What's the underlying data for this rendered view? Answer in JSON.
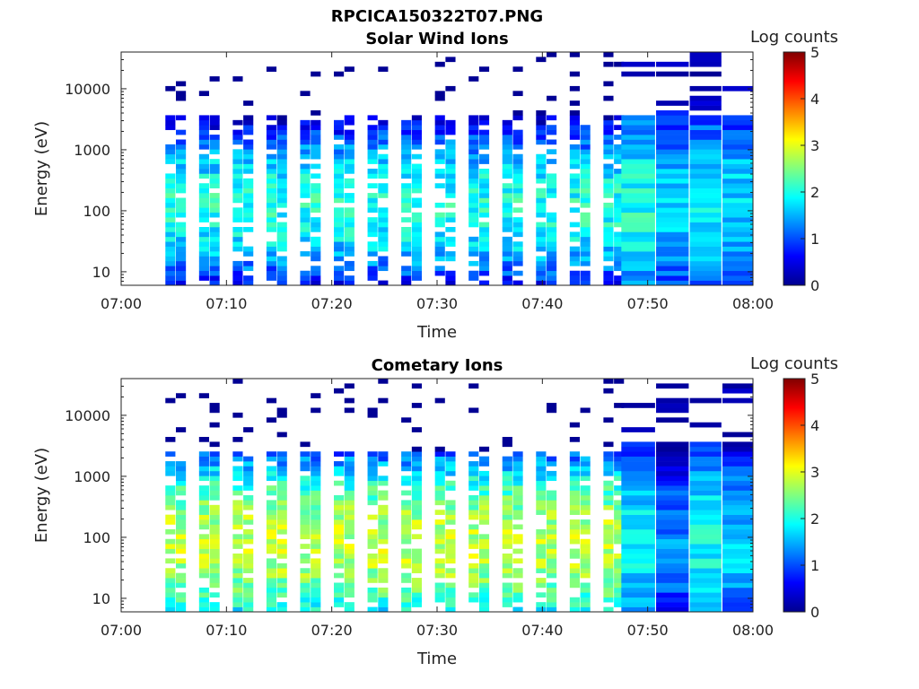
{
  "figure": {
    "title": "RPCICA150322T07.PNG"
  },
  "chart_data": [
    {
      "type": "heatmap",
      "title": "Solar Wind Ions",
      "xlabel": "Time",
      "ylabel": "Energy (eV)",
      "x_ticks": [
        "07:00",
        "07:10",
        "07:20",
        "07:30",
        "07:40",
        "07:50",
        "08:00"
      ],
      "x_range": [
        "07:00",
        "08:00"
      ],
      "y_scale": "log",
      "y_range": [
        6,
        40000
      ],
      "y_ticks": [
        10,
        100,
        1000,
        10000
      ],
      "y_tick_labels": [
        "10",
        "100",
        "1000",
        "10000"
      ],
      "colorbar": {
        "label": "Log counts",
        "range": [
          0,
          5
        ],
        "ticks": [
          "0",
          "1",
          "2",
          "3",
          "4",
          "5"
        ],
        "colormap": "jet"
      },
      "sweep_start_minutes": [
        4.2,
        7.4,
        10.6,
        13.8,
        17.0,
        20.2,
        23.4,
        26.6,
        29.8,
        33.0,
        36.2,
        39.4,
        42.6,
        45.8
      ],
      "scan_blocks": [
        {
          "start_min": 47.5,
          "end_min": 50.7,
          "level": 2.0
        },
        {
          "start_min": 50.8,
          "end_min": 53.9,
          "level": 1.6
        },
        {
          "start_min": 54.0,
          "end_min": 57.0,
          "level": 1.8
        },
        {
          "start_min": 57.1,
          "end_min": 60.0,
          "level": 1.7
        }
      ],
      "peak_energy_ev": 120,
      "peak_log_counts": 2.0
    },
    {
      "type": "heatmap",
      "title": "Cometary Ions",
      "xlabel": "Time",
      "ylabel": "Energy (eV)",
      "x_ticks": [
        "07:00",
        "07:10",
        "07:20",
        "07:30",
        "07:40",
        "07:50",
        "08:00"
      ],
      "x_range": [
        "07:00",
        "08:00"
      ],
      "y_scale": "log",
      "y_range": [
        6,
        40000
      ],
      "y_ticks": [
        10,
        100,
        1000,
        10000
      ],
      "y_tick_labels": [
        "10",
        "100",
        "1000",
        "10000"
      ],
      "colorbar": {
        "label": "Log counts",
        "range": [
          0,
          5
        ],
        "ticks": [
          "0",
          "1",
          "2",
          "3",
          "4",
          "5"
        ],
        "colormap": "jet"
      },
      "sweep_start_minutes": [
        4.2,
        7.4,
        10.6,
        13.8,
        17.0,
        20.2,
        23.4,
        26.6,
        29.8,
        33.0,
        36.2,
        39.4,
        42.6,
        45.8
      ],
      "scan_blocks": [
        {
          "start_min": 47.5,
          "end_min": 50.7,
          "level": 1.8
        },
        {
          "start_min": 50.8,
          "end_min": 53.9,
          "level": 1.3
        },
        {
          "start_min": 54.0,
          "end_min": 57.0,
          "level": 1.9
        },
        {
          "start_min": 57.1,
          "end_min": 60.0,
          "level": 1.6
        }
      ],
      "peak_energy_ev": 80,
      "peak_log_counts": 2.8
    }
  ]
}
